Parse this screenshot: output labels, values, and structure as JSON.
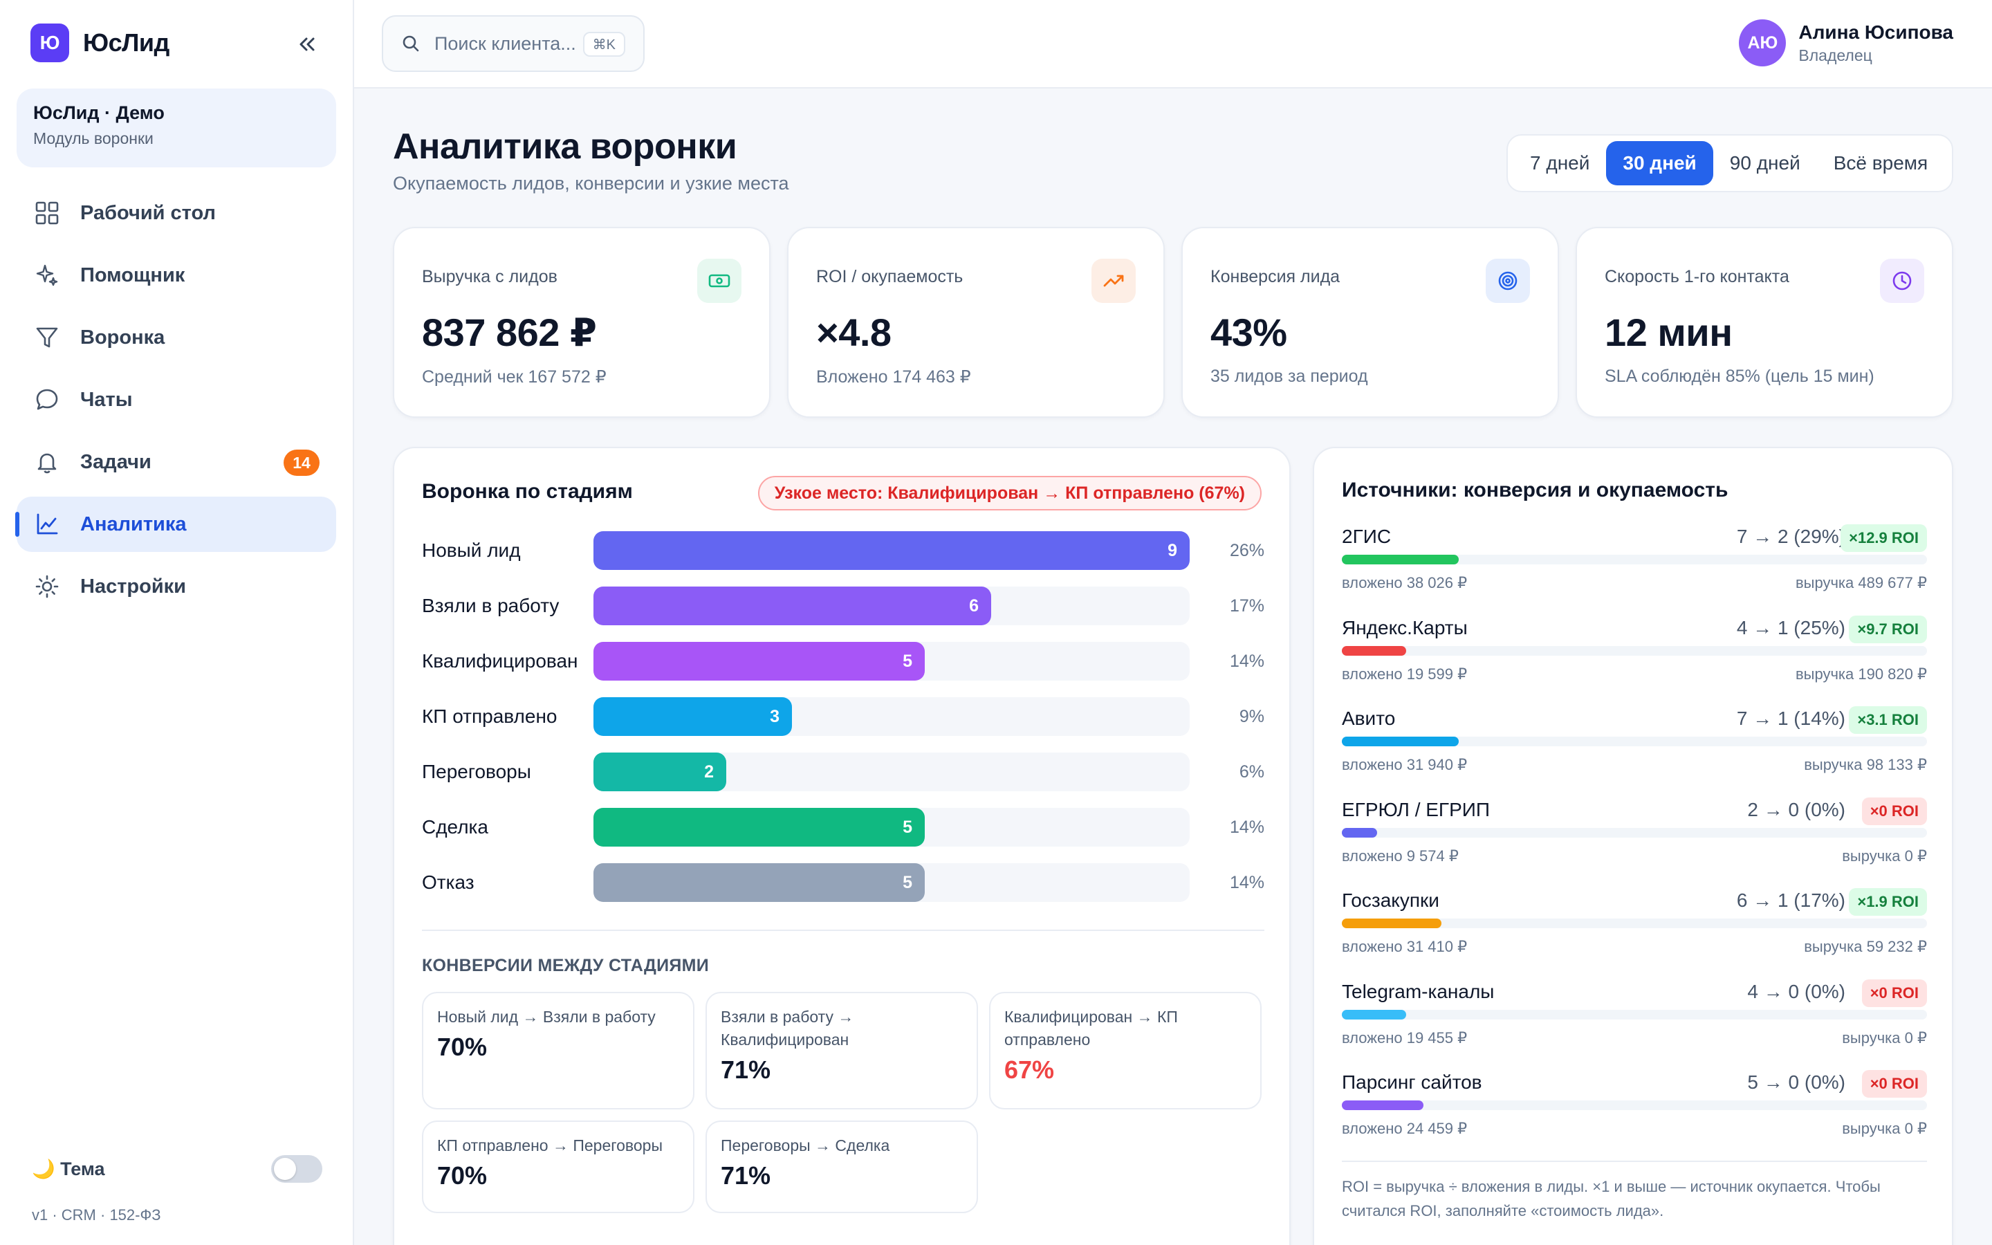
{
  "brand": {
    "logo_letter": "Ю",
    "name": "ЮсЛид"
  },
  "workspace": {
    "name": "ЮсЛид · Демо",
    "module": "Модуль воронки"
  },
  "nav": [
    {
      "label": "Рабочий стол",
      "icon": "dashboard-grid-icon"
    },
    {
      "label": "Помощник",
      "icon": "sparkle-icon"
    },
    {
      "label": "Воронка",
      "icon": "funnel-icon"
    },
    {
      "label": "Чаты",
      "icon": "chat-bubble-icon"
    },
    {
      "label": "Задачи",
      "icon": "bell-icon",
      "badge": "14"
    },
    {
      "label": "Аналитика",
      "icon": "line-chart-icon",
      "active": true
    },
    {
      "label": "Настройки",
      "icon": "sun-gear-icon"
    }
  ],
  "theme": {
    "label": "🌙 Тема"
  },
  "version": "v1 · CRM · 152-ФЗ",
  "search": {
    "placeholder": "Поиск клиента...",
    "shortcut": "⌘K"
  },
  "user": {
    "initials": "АЮ",
    "name": "Алина Юсипова",
    "role": "Владелец"
  },
  "page": {
    "title": "Аналитика воронки",
    "subtitle": "Окупаемость лидов, конверсии и узкие места"
  },
  "range": {
    "options": [
      "7 дней",
      "30 дней",
      "90 дней",
      "Всё время"
    ],
    "selected": "30 дней"
  },
  "kpis": [
    {
      "label": "Выручка с лидов",
      "value": "837 862 ₽",
      "sub": "Средний чек 167 572 ₽",
      "icon": "banknote-icon"
    },
    {
      "label": "ROI / окупаемость",
      "value": "×4.8",
      "sub": "Вложено 174 463 ₽",
      "icon": "trend-up-icon"
    },
    {
      "label": "Конверсия лида",
      "value": "43%",
      "sub": "35 лидов за период",
      "icon": "target-icon"
    },
    {
      "label": "Скорость 1-го контакта",
      "value": "12 мин",
      "sub": "SLA соблюдён 85% (цель 15 мин)",
      "icon": "clock-icon"
    }
  ],
  "funnel": {
    "title": "Воронка по стадиям",
    "bottleneck": "Узкое место: Квалифицирован → КП отправлено (67%)",
    "max_count": 9,
    "stages": [
      {
        "name": "Новый лид",
        "count": 9,
        "pct": "26%",
        "color": "#6366f1"
      },
      {
        "name": "Взяли в работу",
        "count": 6,
        "pct": "17%",
        "color": "#8b5cf6"
      },
      {
        "name": "Квалифицирован",
        "count": 5,
        "pct": "14%",
        "color": "#a855f7"
      },
      {
        "name": "КП отправлено",
        "count": 3,
        "pct": "9%",
        "color": "#0ea5e9"
      },
      {
        "name": "Переговоры",
        "count": 2,
        "pct": "6%",
        "color": "#14b8a6"
      },
      {
        "name": "Сделка",
        "count": 5,
        "pct": "14%",
        "color": "#10b981"
      },
      {
        "name": "Отказ",
        "count": 5,
        "pct": "14%",
        "color": "#94a3b8"
      }
    ],
    "conversions_title": "КОНВЕРСИИ МЕЖДУ СТАДИЯМИ",
    "conversions": [
      {
        "label": "Новый лид → Взяли в работу",
        "value": "70%",
        "warn": false
      },
      {
        "label": "Взяли в работу → Квалифицирован",
        "value": "71%",
        "warn": false
      },
      {
        "label": "Квалифицирован → КП отправлено",
        "value": "67%",
        "warn": true
      },
      {
        "label": "КП отправлено → Переговоры",
        "value": "70%",
        "warn": false
      },
      {
        "label": "Переговоры → Сделка",
        "value": "71%",
        "warn": false
      }
    ]
  },
  "sources": {
    "title": "Источники: конверсия и окупаемость",
    "items": [
      {
        "name": "2ГИС",
        "stat": "7 → 2 (29%)",
        "roi": "×12.9 ROI",
        "roi_positive": true,
        "share": 0.2,
        "color": "#22c55e",
        "invested": "вложено 38 026 ₽",
        "revenue": "выручка 489 677 ₽"
      },
      {
        "name": "Яндекс.Карты",
        "stat": "4 → 1 (25%)",
        "roi": "×9.7 ROI",
        "roi_positive": true,
        "share": 0.11,
        "color": "#ef4444",
        "invested": "вложено 19 599 ₽",
        "revenue": "выручка 190 820 ₽"
      },
      {
        "name": "Авито",
        "stat": "7 → 1 (14%)",
        "roi": "×3.1 ROI",
        "roi_positive": true,
        "share": 0.2,
        "color": "#0ea5e9",
        "invested": "вложено 31 940 ₽",
        "revenue": "выручка 98 133 ₽"
      },
      {
        "name": "ЕГРЮЛ / ЕГРИП",
        "stat": "2 → 0 (0%)",
        "roi": "×0 ROI",
        "roi_positive": false,
        "share": 0.06,
        "color": "#6366f1",
        "invested": "вложено 9 574 ₽",
        "revenue": "выручка 0 ₽"
      },
      {
        "name": "Госзакупки",
        "stat": "6 → 1 (17%)",
        "roi": "×1.9 ROI",
        "roi_positive": true,
        "share": 0.17,
        "color": "#f59e0b",
        "invested": "вложено 31 410 ₽",
        "revenue": "выручка 59 232 ₽"
      },
      {
        "name": "Telegram-каналы",
        "stat": "4 → 0 (0%)",
        "roi": "×0 ROI",
        "roi_positive": false,
        "share": 0.11,
        "color": "#38bdf8",
        "invested": "вложено 19 455 ₽",
        "revenue": "выручка 0 ₽"
      },
      {
        "name": "Парсинг сайтов",
        "stat": "5 → 0 (0%)",
        "roi": "×0 ROI",
        "roi_positive": false,
        "share": 0.14,
        "color": "#8b5cf6",
        "invested": "вложено 24 459 ₽",
        "revenue": "выручка 0 ₽"
      }
    ],
    "note": "ROI = выручка ÷ вложения в лиды. ×1 и выше — источник окупается. Чтобы считался ROI, заполняйте «стоимость лида»."
  }
}
